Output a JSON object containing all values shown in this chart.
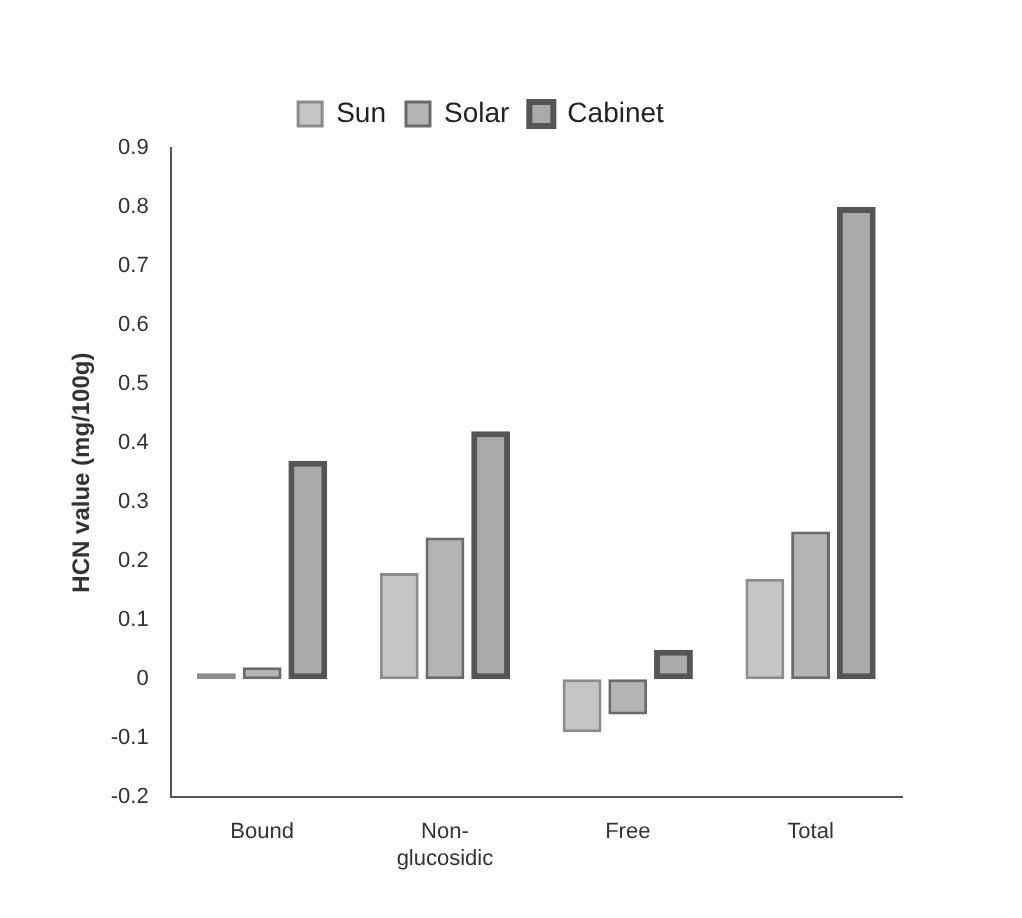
{
  "chart_data": {
    "type": "bar",
    "ylabel": "HCN value (mg/100g)",
    "categories": [
      "Bound",
      "Non-\nglucosidic",
      "Free",
      "Total"
    ],
    "series": [
      {
        "name": "Sun",
        "color": "#8c8c8c",
        "values": [
          0.01,
          0.18,
          -0.09,
          0.17
        ]
      },
      {
        "name": "Solar",
        "color": "#6a6a6a",
        "values": [
          0.02,
          0.24,
          -0.06,
          0.25
        ]
      },
      {
        "name": "Cabinet",
        "color": "#555555",
        "values": [
          0.37,
          0.42,
          0.05,
          0.8
        ]
      }
    ],
    "ylim": [
      -0.2,
      0.9
    ],
    "yticks": [
      -0.2,
      -0.1,
      0,
      0.1,
      0.2,
      0.3,
      0.4,
      0.5,
      0.6,
      0.7,
      0.8,
      0.9
    ],
    "grid": false,
    "legend": "top"
  }
}
